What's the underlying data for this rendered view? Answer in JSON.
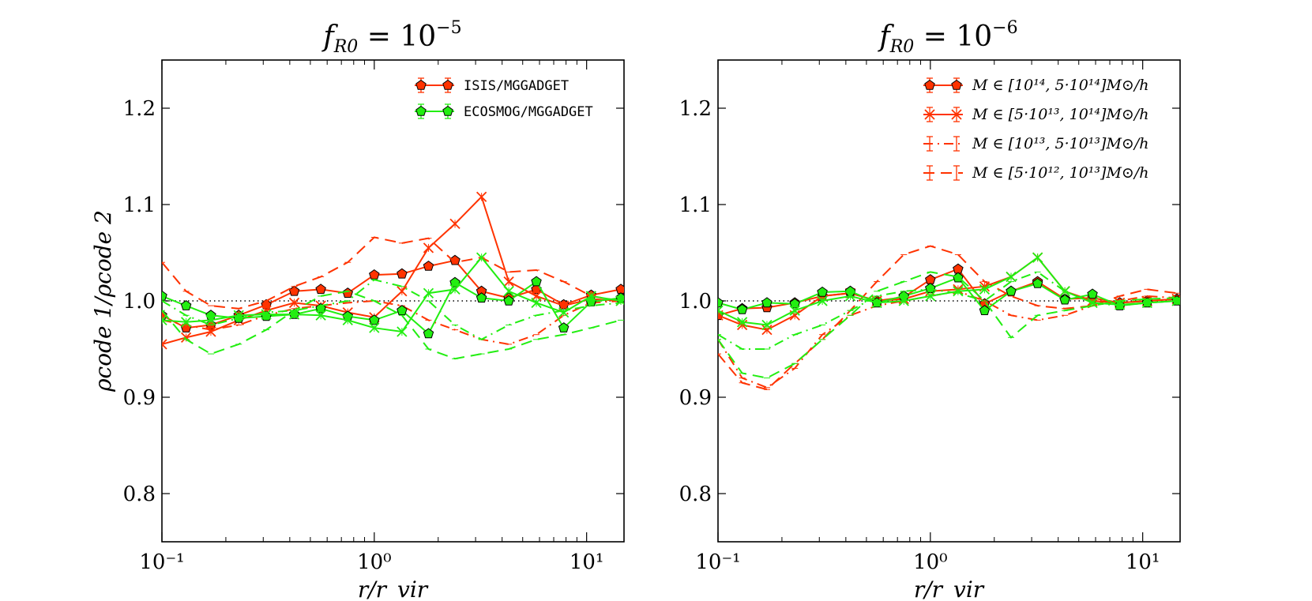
{
  "chart_data": [
    {
      "type": "line",
      "title": "fR0 = 10^-5",
      "title_main": "f",
      "title_sub": "R0",
      "title_eq": " = 10",
      "title_sup": "−5",
      "xlabel": "r/r_vir",
      "ylabel": "ρcode 1/ρcode 2",
      "xscale": "log",
      "xlim": [
        0.1,
        15
      ],
      "ylim": [
        0.75,
        1.25
      ],
      "xtick_labels": [
        "10⁻¹",
        "10⁰",
        "10¹"
      ],
      "xtick_values": [
        0.1,
        1,
        10
      ],
      "ytick_labels": [
        "0.8",
        "0.9",
        "1.0",
        "1.1",
        "1.2"
      ],
      "ytick_values": [
        0.8,
        0.9,
        1.0,
        1.1,
        1.2
      ],
      "reference_line": 1.0,
      "legend": [
        {
          "label": "ISIS/MGGADGET",
          "color": "#ff3300",
          "marker": "pentagon"
        },
        {
          "label": "ECOSMOG/MGGADGET",
          "color": "#22ee11",
          "marker": "pentagon"
        }
      ],
      "x": [
        0.1,
        0.13,
        0.17,
        0.23,
        0.31,
        0.42,
        0.56,
        0.75,
        1.0,
        1.35,
        1.8,
        2.4,
        3.2,
        4.3,
        5.8,
        7.8,
        10.5,
        14.5
      ],
      "series": [
        {
          "name": "ISIS M1",
          "color": "#ff3300",
          "style": "solid",
          "marker": "pentagon",
          "values": [
            0.985,
            0.972,
            0.975,
            0.985,
            0.996,
            1.01,
            1.012,
            1.008,
            1.027,
            1.028,
            1.036,
            1.042,
            1.01,
            1.003,
            1.012,
            0.996,
            1.006,
            1.012
          ]
        },
        {
          "name": "ISIS M2",
          "color": "#ff3300",
          "style": "solid",
          "marker": "x",
          "values": [
            0.955,
            0.962,
            0.968,
            0.98,
            0.99,
            0.998,
            0.995,
            0.988,
            0.983,
            1.01,
            1.055,
            1.08,
            1.108,
            1.02,
            1.005,
            0.995,
            1.002,
            1.0
          ]
        },
        {
          "name": "ISIS M3",
          "color": "#ff3300",
          "style": "dashdot",
          "marker": "none",
          "values": [
            0.98,
            0.975,
            0.97,
            0.975,
            0.985,
            0.992,
            0.995,
            0.998,
            1.0,
            0.995,
            0.98,
            0.97,
            0.96,
            0.955,
            0.965,
            0.985,
            0.998,
            1.0
          ]
        },
        {
          "name": "ISIS M4",
          "color": "#ff3300",
          "style": "dashed",
          "marker": "none",
          "values": [
            1.04,
            1.01,
            0.995,
            0.992,
            1.0,
            1.015,
            1.025,
            1.04,
            1.066,
            1.06,
            1.065,
            1.04,
            1.045,
            1.03,
            1.032,
            1.02,
            1.005,
            1.0
          ]
        },
        {
          "name": "ECOSMOG M1",
          "color": "#22ee11",
          "style": "solid",
          "marker": "pentagon",
          "values": [
            1.005,
            0.995,
            0.985,
            0.982,
            0.984,
            0.986,
            0.992,
            0.984,
            0.98,
            0.99,
            0.966,
            1.019,
            1.003,
            1.0,
            1.02,
            0.972,
            0.999,
            1.003
          ]
        },
        {
          "name": "ECOSMOG M2",
          "color": "#22ee11",
          "style": "solid",
          "marker": "x",
          "values": [
            0.98,
            0.978,
            0.98,
            0.985,
            0.986,
            0.986,
            0.985,
            0.98,
            0.972,
            0.968,
            1.008,
            1.012,
            1.045,
            1.01,
            0.998,
            0.988,
            1.005,
            1.0
          ]
        },
        {
          "name": "ECOSMOG M3",
          "color": "#22ee11",
          "style": "dashdot",
          "marker": "none",
          "values": [
            1.0,
            0.985,
            0.975,
            0.982,
            0.988,
            0.99,
            0.995,
            1.0,
            1.022,
            1.015,
            1.0,
            0.975,
            0.96,
            0.975,
            0.985,
            0.99,
            0.995,
            0.998
          ]
        },
        {
          "name": "ECOSMOG M4",
          "color": "#22ee11",
          "style": "dashed",
          "marker": "none",
          "values": [
            0.99,
            0.96,
            0.945,
            0.955,
            0.97,
            0.99,
            1.005,
            1.01,
            1.0,
            0.985,
            0.95,
            0.94,
            0.945,
            0.95,
            0.96,
            0.965,
            0.972,
            0.98
          ]
        }
      ]
    },
    {
      "type": "line",
      "title": "fR0 = 10^-6",
      "title_main": "f",
      "title_sub": "R0",
      "title_eq": " = 10",
      "title_sup": "−6",
      "xlabel": "r/r_vir",
      "xscale": "log",
      "xlim": [
        0.1,
        15
      ],
      "ylim": [
        0.75,
        1.25
      ],
      "xtick_labels": [
        "10⁻¹",
        "10⁰",
        "10¹"
      ],
      "xtick_values": [
        0.1,
        1,
        10
      ],
      "ytick_labels": [
        "0.8",
        "0.9",
        "1.0",
        "1.1",
        "1.2"
      ],
      "ytick_values": [
        0.8,
        0.9,
        1.0,
        1.1,
        1.2
      ],
      "reference_line": 1.0,
      "legend": [
        {
          "label": "M ∈ [10¹⁴, 5·10¹⁴]M⊙/h",
          "color": "#ff3300",
          "style": "solid",
          "marker": "pentagon"
        },
        {
          "label": "M ∈ [5·10¹³, 10¹⁴]M⊙/h",
          "color": "#ff3300",
          "style": "solid",
          "marker": "x"
        },
        {
          "label": "M ∈ [10¹³, 5·10¹³]M⊙/h",
          "color": "#ff3300",
          "style": "dashdot",
          "marker": "none"
        },
        {
          "label": "M ∈ [5·10¹², 10¹³]M⊙/h",
          "color": "#ff3300",
          "style": "dashed",
          "marker": "none"
        }
      ],
      "x": [
        0.1,
        0.13,
        0.17,
        0.23,
        0.31,
        0.42,
        0.56,
        0.75,
        1.0,
        1.35,
        1.8,
        2.4,
        3.2,
        4.3,
        5.8,
        7.8,
        10.5,
        14.5
      ],
      "series": [
        {
          "name": "ISIS M1",
          "color": "#ff3300",
          "style": "solid",
          "marker": "pentagon",
          "values": [
            0.985,
            0.992,
            0.993,
            0.998,
            1.005,
            1.008,
            1.0,
            1.004,
            1.022,
            1.033,
            0.997,
            1.01,
            1.02,
            1.002,
            1.003,
            0.998,
            1.0,
            1.002
          ]
        },
        {
          "name": "ISIS M2",
          "color": "#ff3300",
          "style": "solid",
          "marker": "x",
          "values": [
            0.985,
            0.975,
            0.97,
            0.985,
            1.005,
            1.008,
            1.0,
            1.002,
            1.01,
            1.012,
            1.015,
            1.025,
            1.045,
            1.01,
            1.0,
            0.998,
            1.0,
            1.002
          ]
        },
        {
          "name": "ISIS M3",
          "color": "#ff3300",
          "style": "dashdot",
          "marker": "none",
          "values": [
            0.96,
            0.92,
            0.91,
            0.93,
            0.965,
            0.985,
            0.995,
            1.0,
            1.005,
            1.01,
            1.0,
            0.985,
            0.98,
            0.985,
            0.995,
            1.0,
            1.005,
            1.003
          ]
        },
        {
          "name": "ISIS M4",
          "color": "#ff3300",
          "style": "dashed",
          "marker": "none",
          "values": [
            0.945,
            0.915,
            0.908,
            0.935,
            0.96,
            0.99,
            1.02,
            1.048,
            1.057,
            1.048,
            1.02,
            1.005,
            0.995,
            0.992,
            0.995,
            1.005,
            1.012,
            1.008
          ]
        },
        {
          "name": "ECOSMOG M1",
          "color": "#22ee11",
          "style": "solid",
          "marker": "pentagon",
          "values": [
            0.998,
            0.991,
            0.998,
            0.997,
            1.009,
            1.01,
            0.998,
            1.005,
            1.013,
            1.024,
            0.99,
            1.01,
            1.018,
            1.001,
            1.007,
            0.995,
            0.998,
            1.0
          ]
        },
        {
          "name": "ECOSMOG M2",
          "color": "#22ee11",
          "style": "solid",
          "marker": "x",
          "values": [
            0.99,
            0.978,
            0.975,
            0.99,
            1.0,
            1.005,
            0.998,
            1.0,
            1.005,
            1.01,
            1.012,
            1.025,
            1.045,
            1.01,
            0.998,
            0.996,
            0.998,
            1.0
          ]
        },
        {
          "name": "ECOSMOG M3",
          "color": "#22ee11",
          "style": "dashdot",
          "marker": "none",
          "values": [
            0.965,
            0.95,
            0.95,
            0.965,
            0.975,
            0.99,
            1.005,
            1.01,
            1.012,
            1.008,
            1.0,
            1.02,
            1.03,
            1.01,
            0.998,
            0.995,
            0.998,
            1.0
          ]
        },
        {
          "name": "ECOSMOG M4",
          "color": "#22ee11",
          "style": "dashed",
          "marker": "none",
          "values": [
            0.96,
            0.925,
            0.92,
            0.935,
            0.96,
            0.985,
            1.01,
            1.02,
            1.03,
            1.025,
            1.0,
            0.962,
            0.985,
            0.99,
            0.995,
            1.0,
            1.002,
            1.003
          ]
        }
      ]
    }
  ]
}
